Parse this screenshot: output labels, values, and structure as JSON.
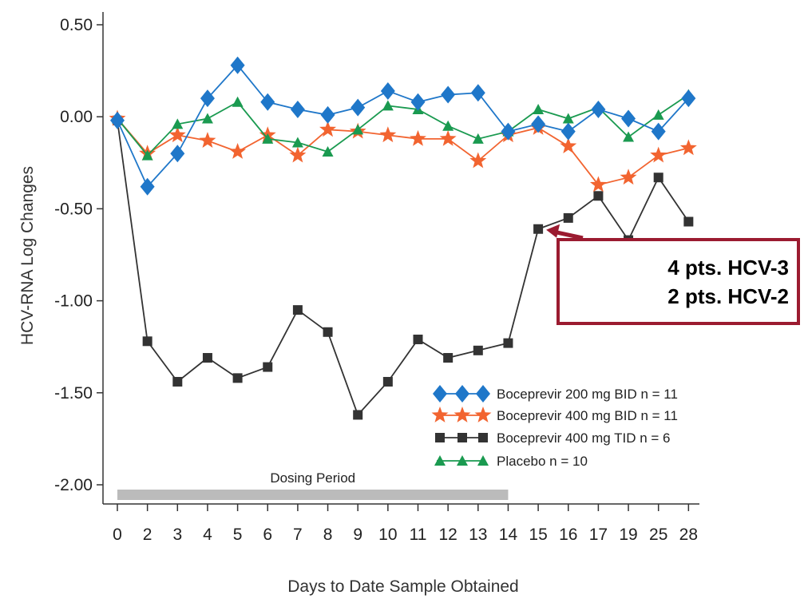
{
  "chart_data": {
    "type": "line",
    "categories": [
      "0",
      "2",
      "3",
      "4",
      "5",
      "6",
      "7",
      "8",
      "9",
      "10",
      "11",
      "12",
      "13",
      "14",
      "15",
      "16",
      "17",
      "19",
      "25",
      "28"
    ],
    "xlabel": "Days to Date Sample Obtained",
    "ylabel": "HCV-RNA Log Changes",
    "ylim": [
      -2.0,
      0.5
    ],
    "yticks": [
      "0.50",
      "0.00",
      "-0.50",
      "-1.00",
      "-1.50",
      "-2.00"
    ],
    "ytick_values": [
      0.5,
      0.0,
      -0.5,
      -1.0,
      -1.5,
      -2.0
    ],
    "grid": false,
    "legend_position": "bottom-right",
    "series": [
      {
        "name": "Boceprevir 200 mg BID n = 11",
        "color": "#1f77c9",
        "marker": "diamond",
        "values": [
          -0.02,
          -0.38,
          -0.2,
          0.1,
          0.28,
          0.08,
          0.04,
          0.01,
          0.05,
          0.14,
          0.08,
          0.12,
          0.13,
          -0.08,
          -0.04,
          -0.08,
          0.04,
          -0.01,
          -0.08,
          0.1
        ]
      },
      {
        "name": "Boceprevir 400 mg BID n = 11",
        "color": "#f26430",
        "marker": "star",
        "values": [
          -0.01,
          -0.2,
          -0.1,
          -0.13,
          -0.19,
          -0.1,
          -0.21,
          -0.07,
          -0.08,
          -0.1,
          -0.12,
          -0.12,
          -0.24,
          -0.1,
          -0.06,
          -0.16,
          -0.37,
          -0.33,
          -0.21,
          -0.17
        ]
      },
      {
        "name": "Boceprevir 400 mg TID n = 6",
        "color": "#333333",
        "marker": "square",
        "values": [
          -0.02,
          -1.22,
          -1.44,
          -1.31,
          -1.42,
          -1.36,
          -1.05,
          -1.17,
          -1.62,
          -1.44,
          -1.21,
          -1.31,
          -1.27,
          -1.23,
          -0.61,
          -0.55,
          -0.43,
          -0.67,
          -0.33,
          -0.57
        ]
      },
      {
        "name": "Placebo n = 10",
        "color": "#1a9a50",
        "marker": "triangle",
        "values": [
          -0.01,
          -0.21,
          -0.04,
          -0.01,
          0.08,
          -0.12,
          -0.14,
          -0.19,
          -0.07,
          0.06,
          0.04,
          -0.05,
          -0.12,
          -0.08,
          0.04,
          -0.01,
          0.05,
          -0.11,
          0.01,
          0.12
        ]
      }
    ],
    "dosing_period": {
      "label": "Dosing Period",
      "start": "0",
      "end": "14",
      "color": "#bbbbbb"
    },
    "annotation": {
      "lines": [
        "4 pts. HCV-3",
        "2 pts. HCV-2"
      ],
      "points_to": "15",
      "border_color": "#9b1b30"
    }
  }
}
